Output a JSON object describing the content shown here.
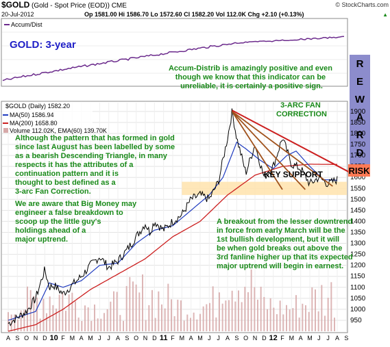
{
  "header": {
    "symbol": "$GOLD",
    "description": "(Gold - Spot Price (EOD)) CME",
    "watermark": "© StockCharts.com",
    "date": "20-Jul-2012",
    "ohlc": "Op 1581.00  Hi 1586.70  Lo 1572.60  Cl 1582.20  Vol 112.0K  Chg +2.10 (+0.13%)",
    "chg_arrow": "▲"
  },
  "accum_panel": {
    "label": "Accum/Dist",
    "title": "GOLD: 3-year",
    "annotation": [
      "Accum-Distrib is amazingly positive and even",
      "though we know that this indicator can be",
      "unreliable, it is certainly a positive sign."
    ],
    "reward_letters": [
      "R",
      "E",
      "W",
      "A",
      "R",
      "D"
    ]
  },
  "price_legend": {
    "main": "$GOLD (Daily) 1582.20",
    "ma50": "MA(50) 1586.94",
    "ma200": "MA(200) 1658.80",
    "volume": "Volume 112.02K, EMA(60) 139.70K"
  },
  "annotations": {
    "fan_title": [
      "3-ARC FAN",
      "CORRECTION"
    ],
    "key_support": "KEY SUPPORT",
    "risk": "RISK",
    "pattern": [
      "Although the pattern that has formed in gold",
      "since last August has been labelled by some",
      "as a bearish Descending Triangle, in many",
      "respects it has the attributes of a",
      "continuation pattern and it is",
      "thought to best defined as a",
      "3-arc Fan Correction."
    ],
    "big_money": [
      "We are aware that Big Money may",
      "engineer a false breakdown to",
      "scoop up the little guy's",
      "holdings ahead of a",
      "major uptrend."
    ],
    "breakout": [
      "A breakout from the lesser downtrend",
      "in force from early March will be the",
      "1st bullish development, but it will",
      "be when gold breaks out above the",
      "3rd fanline higher up that its expected",
      "major uptrend will begin in earnest."
    ]
  },
  "colors": {
    "price": "#000000",
    "ma50": "#1f3bbf",
    "ma200": "#cc1f1f",
    "volume": "#d7a9a9",
    "accum": "#6b2a8c",
    "annotation_text": "#1a8a1a",
    "title_blue": "#2020c8",
    "reward_bg": "#8c8ccc",
    "risk_bg": "#ff7a55",
    "support_band": "#ffe3ad",
    "fan_lines": "#a0521c",
    "downtrend": "#cc1f1f"
  },
  "chart_data": {
    "type": "line",
    "period": "3-year daily",
    "y_axis_ticks": [
      950,
      1000,
      1050,
      1100,
      1150,
      1200,
      1250,
      1300,
      1350,
      1400,
      1450,
      1500,
      1550,
      1600,
      1650,
      1700,
      1750,
      1800,
      1850,
      1900
    ],
    "ylim": [
      900,
      1940
    ],
    "x_axis_labels": [
      "A",
      "S",
      "O",
      "N",
      "D",
      "10",
      "F",
      "M",
      "A",
      "M",
      "J",
      "J",
      "A",
      "S",
      "O",
      "N",
      "D",
      "11",
      "F",
      "M",
      "A",
      "M",
      "J",
      "J",
      "A",
      "S",
      "O",
      "N",
      "D",
      "12",
      "F",
      "M",
      "A",
      "M",
      "J",
      "J",
      "A",
      "S"
    ],
    "x_bold": [
      "10",
      "11",
      "12"
    ],
    "price_path": [
      [
        0,
        935
      ],
      [
        2,
        990
      ],
      [
        3,
        1050
      ],
      [
        4,
        1180
      ],
      [
        4.5,
        1100
      ],
      [
        5,
        1110
      ],
      [
        6,
        1070
      ],
      [
        7,
        1110
      ],
      [
        8,
        1150
      ],
      [
        9,
        1200
      ],
      [
        10,
        1240
      ],
      [
        11,
        1190
      ],
      [
        12,
        1220
      ],
      [
        13,
        1270
      ],
      [
        14,
        1330
      ],
      [
        15,
        1390
      ],
      [
        15.5,
        1350
      ],
      [
        16,
        1400
      ],
      [
        17,
        1360
      ],
      [
        18,
        1400
      ],
      [
        19,
        1430
      ],
      [
        20,
        1500
      ],
      [
        21,
        1520
      ],
      [
        22,
        1500
      ],
      [
        23,
        1580
      ],
      [
        24,
        1780
      ],
      [
        24.5,
        1900
      ],
      [
        25,
        1780
      ],
      [
        26,
        1620
      ],
      [
        27,
        1750
      ],
      [
        28,
        1600
      ],
      [
        29,
        1650
      ],
      [
        30,
        1780
      ],
      [
        31,
        1660
      ],
      [
        32,
        1640
      ],
      [
        33,
        1570
      ],
      [
        34,
        1600
      ],
      [
        35,
        1570
      ],
      [
        36,
        1590
      ]
    ],
    "ma50_path": [
      [
        0,
        950
      ],
      [
        3,
        990
      ],
      [
        4.5,
        1120
      ],
      [
        6,
        1100
      ],
      [
        8,
        1130
      ],
      [
        10,
        1200
      ],
      [
        12,
        1210
      ],
      [
        14,
        1300
      ],
      [
        16,
        1360
      ],
      [
        18,
        1380
      ],
      [
        20,
        1450
      ],
      [
        22,
        1520
      ],
      [
        23.5,
        1600
      ],
      [
        25,
        1760
      ],
      [
        26,
        1730
      ],
      [
        27.5,
        1680
      ],
      [
        29,
        1640
      ],
      [
        30.5,
        1700
      ],
      [
        31.5,
        1720
      ],
      [
        33,
        1650
      ],
      [
        34.5,
        1590
      ],
      [
        36,
        1587
      ]
    ],
    "ma200_path": [
      [
        0,
        900
      ],
      [
        3,
        930
      ],
      [
        6,
        1000
      ],
      [
        9,
        1090
      ],
      [
        12,
        1160
      ],
      [
        15,
        1230
      ],
      [
        18,
        1330
      ],
      [
        21,
        1400
      ],
      [
        24,
        1520
      ],
      [
        27,
        1610
      ],
      [
        30,
        1650
      ],
      [
        33,
        1660
      ],
      [
        36,
        1659
      ]
    ],
    "support_band": [
      1520,
      1580
    ],
    "fan_origin": [
      24.5,
      1900
    ],
    "fan_ends": [
      [
        30,
        1545
      ],
      [
        32.5,
        1545
      ],
      [
        35.5,
        1560
      ]
    ],
    "downtrend_line": [
      [
        24.5,
        1905
      ],
      [
        37.5,
        1620
      ]
    ]
  }
}
